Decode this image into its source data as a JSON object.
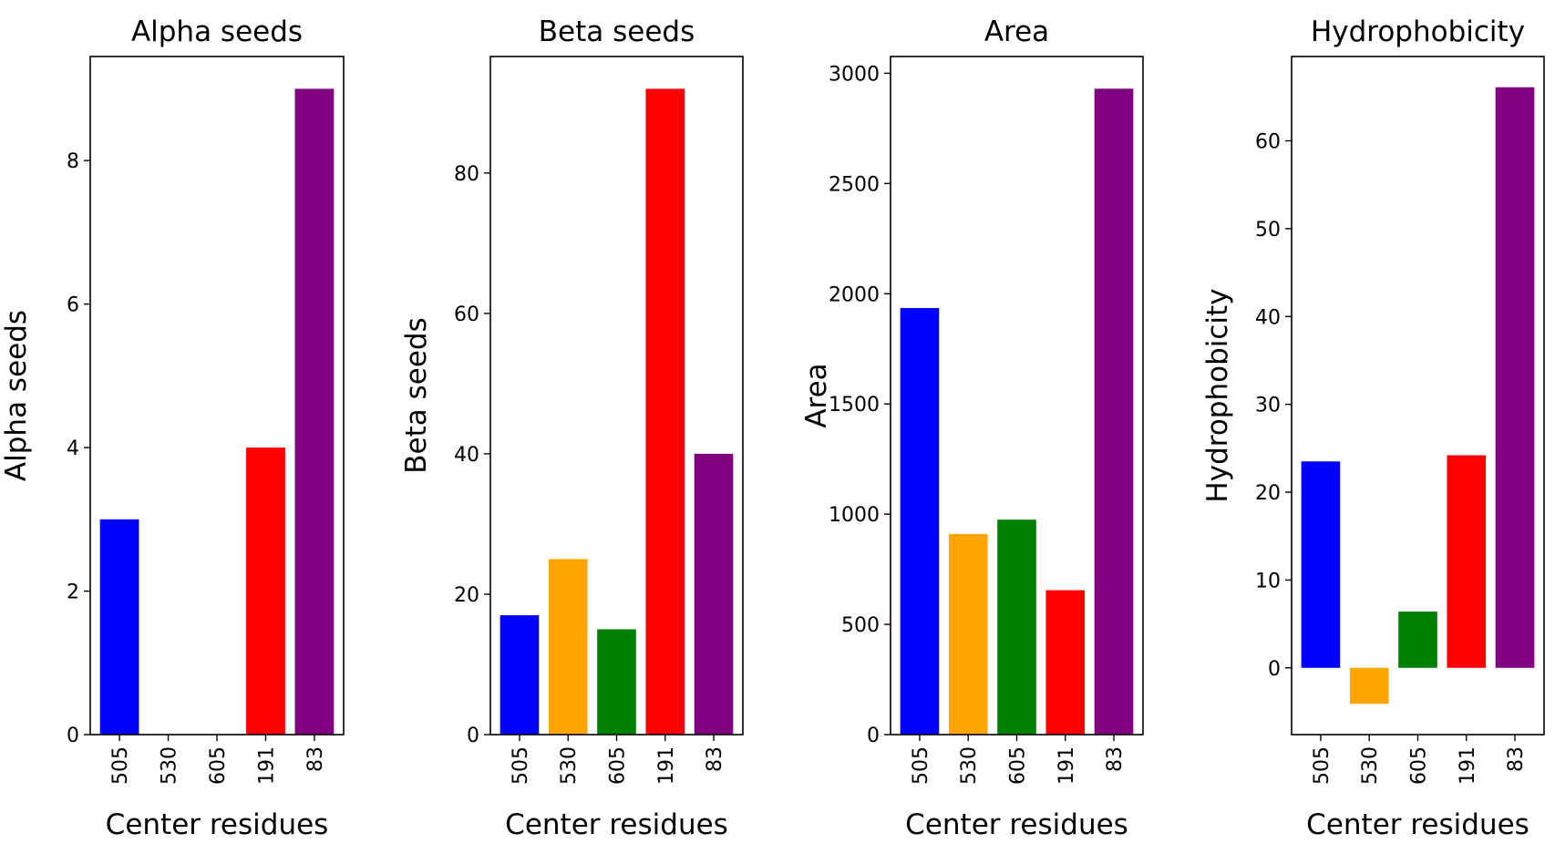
{
  "chart_data": [
    {
      "type": "bar",
      "title": "Alpha seeds",
      "xlabel": "Center residues",
      "ylabel": "Alpha seeds",
      "categories": [
        "505",
        "530",
        "605",
        "191",
        "83"
      ],
      "values": [
        3,
        0,
        0,
        4,
        9
      ],
      "colors": [
        "#0000ff",
        "#ffa500",
        "#008000",
        "#ff0000",
        "#800080"
      ],
      "ylim": [
        0,
        9.45
      ],
      "yticks": [
        0,
        2,
        4,
        6,
        8
      ],
      "grid": false
    },
    {
      "type": "bar",
      "title": "Beta seeds",
      "xlabel": "Center residues",
      "ylabel": "Beta seeds",
      "categories": [
        "505",
        "530",
        "605",
        "191",
        "83"
      ],
      "values": [
        17,
        25,
        15,
        92,
        40
      ],
      "colors": [
        "#0000ff",
        "#ffa500",
        "#008000",
        "#ff0000",
        "#800080"
      ],
      "ylim": [
        0,
        96.6
      ],
      "yticks": [
        0,
        20,
        40,
        60,
        80
      ],
      "grid": false
    },
    {
      "type": "bar",
      "title": "Area",
      "xlabel": "Center residues",
      "ylabel": "Area",
      "categories": [
        "505",
        "530",
        "605",
        "191",
        "83"
      ],
      "values": [
        1935,
        910,
        975,
        655,
        2930
      ],
      "colors": [
        "#0000ff",
        "#ffa500",
        "#008000",
        "#ff0000",
        "#800080"
      ],
      "ylim": [
        0,
        3076
      ],
      "yticks": [
        0,
        500,
        1000,
        1500,
        2000,
        2500,
        3000
      ],
      "grid": false
    },
    {
      "type": "bar",
      "title": "Hydrophobicity",
      "xlabel": "Center residues",
      "ylabel": "Hydrophobicity",
      "categories": [
        "505",
        "530",
        "605",
        "191",
        "83"
      ],
      "values": [
        23.5,
        -4.1,
        6.4,
        24.2,
        66.1
      ],
      "colors": [
        "#0000ff",
        "#ffa500",
        "#008000",
        "#ff0000",
        "#800080"
      ],
      "ylim": [
        -7.6,
        69.6
      ],
      "yticks": [
        0,
        10,
        20,
        30,
        40,
        50,
        60
      ],
      "grid": false
    }
  ]
}
